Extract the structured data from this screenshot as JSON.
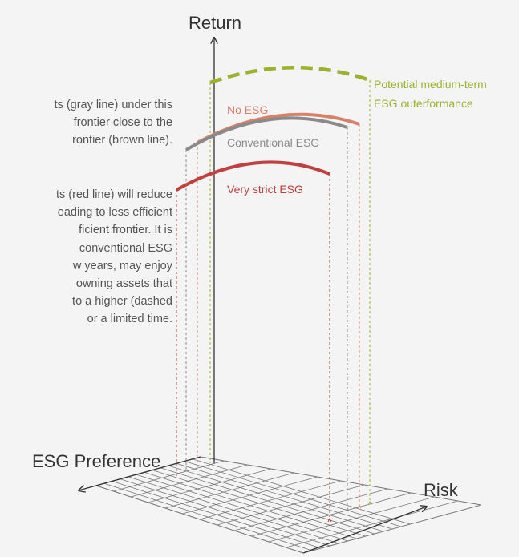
{
  "axes": {
    "return_label": "Return",
    "risk_label": "Risk",
    "esg_label": "ESG Preference"
  },
  "curves": {
    "potential_label_1": "Potential medium-term",
    "potential_label_2": "ESG outerformance",
    "no_esg_label": "No ESG",
    "conventional_label": "Conventional ESG",
    "strict_label": "Very strict ESG"
  },
  "colors": {
    "potential": "#99b32d",
    "no_esg": "#d98068",
    "conventional": "#8a8a8a",
    "strict": "#c04040",
    "text": "#555555",
    "axis": "#333333"
  },
  "text_blocks": {
    "para1": [
      "ts (gray line) under this",
      "frontier close to the",
      "rontier (brown line)."
    ],
    "para2": [
      "ts (red line) will reduce",
      "eading to less efficient",
      "ficient frontier. It is",
      "conventional ESG",
      "w years, may enjoy",
      "owning assets that",
      "to a higher (dashed",
      "or a limited time."
    ]
  }
}
